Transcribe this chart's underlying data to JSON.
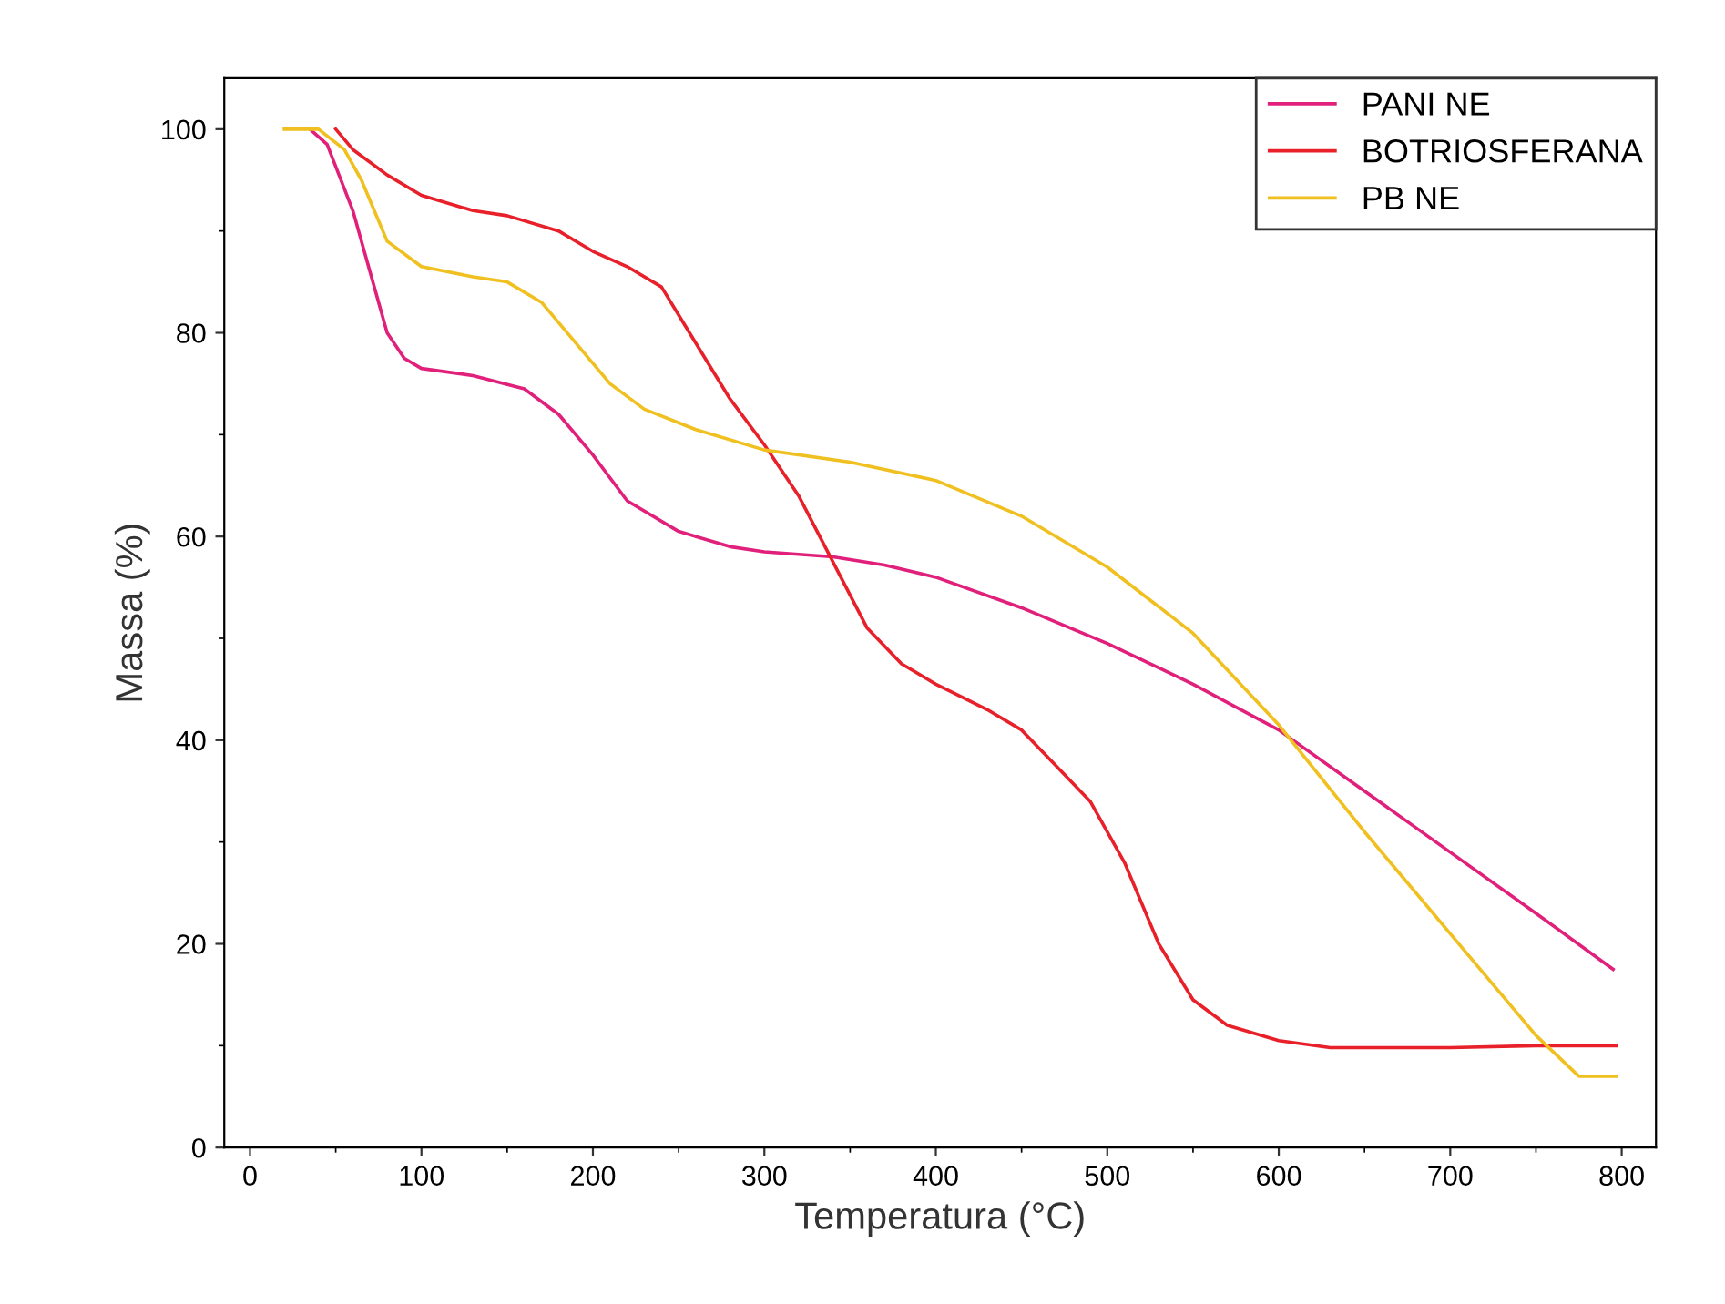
{
  "chart_data": {
    "type": "line",
    "xlabel": "Temperatura (°C)",
    "ylabel": "Massa (%)",
    "xlim": [
      -15,
      820
    ],
    "ylim": [
      0,
      105
    ],
    "xticks": [
      0,
      100,
      200,
      300,
      400,
      500,
      600,
      700,
      800
    ],
    "yticks": [
      0,
      20,
      40,
      60,
      80,
      100
    ],
    "grid": false,
    "legend": "top right",
    "line_style": "solid",
    "series": [
      {
        "name": "PANI NE",
        "color": "#e0207a",
        "x": [
          35,
          45,
          60,
          70,
          80,
          90,
          100,
          130,
          160,
          180,
          200,
          220,
          250,
          280,
          300,
          340,
          370,
          400,
          450,
          500,
          550,
          600,
          650,
          700,
          750,
          795
        ],
        "values": [
          100,
          98.5,
          92,
          86,
          80,
          77.5,
          76.5,
          75.8,
          74.5,
          72,
          68,
          63.5,
          60.5,
          59,
          58.5,
          58,
          57.2,
          56,
          53,
          49.5,
          45.5,
          41,
          35,
          29,
          23,
          17.5
        ]
      },
      {
        "name": "BOTRIOSFERANA",
        "color": "#e8202a",
        "x": [
          50,
          60,
          80,
          100,
          130,
          150,
          180,
          200,
          220,
          240,
          260,
          280,
          300,
          320,
          340,
          360,
          380,
          400,
          430,
          450,
          470,
          490,
          510,
          530,
          550,
          570,
          600,
          630,
          700,
          750,
          797
        ],
        "values": [
          100,
          98,
          95.5,
          93.5,
          92,
          91.5,
          90,
          88,
          86.5,
          84.5,
          79,
          73.5,
          69,
          64,
          57.5,
          51,
          47.5,
          45.5,
          43,
          41,
          37.5,
          34,
          28,
          20,
          14.5,
          12,
          10.5,
          9.8,
          9.8,
          10,
          10
        ]
      },
      {
        "name": "PB NE",
        "color": "#f0c020",
        "x": [
          20,
          40,
          55,
          65,
          80,
          100,
          130,
          150,
          170,
          190,
          210,
          230,
          260,
          300,
          350,
          400,
          450,
          500,
          550,
          600,
          650,
          700,
          750,
          775,
          797
        ],
        "values": [
          100,
          100,
          98,
          95,
          89,
          86.5,
          85.5,
          85,
          83,
          79,
          75,
          72.5,
          70.5,
          68.5,
          67.3,
          65.5,
          62,
          57,
          50.5,
          41.5,
          31,
          21,
          11,
          7,
          7
        ]
      }
    ]
  }
}
